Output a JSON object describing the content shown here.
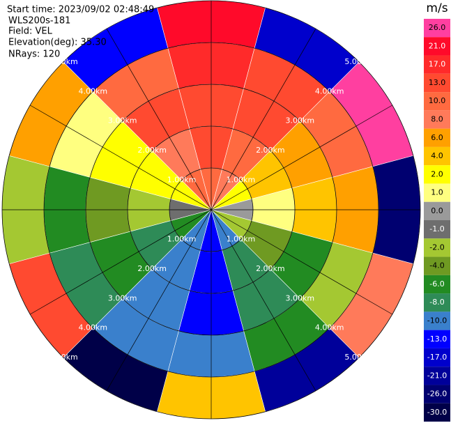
{
  "chart_data": {
    "type": "ppi",
    "header": [
      "Start time: 2023/09/02 02:48:49",
      "WLS200s-181",
      "Field: VEL",
      "Elevation(deg): 35.30",
      "NRays: 120"
    ],
    "unit": "m/s",
    "rings": [
      {
        "value": 1,
        "label": "1.00km"
      },
      {
        "value": 2,
        "label": "2.00km"
      },
      {
        "value": 3,
        "label": "3.00km"
      },
      {
        "value": 4,
        "label": "4.00km"
      },
      {
        "value": 5,
        "label": "5.00km"
      }
    ],
    "levels": [
      {
        "value": 26,
        "label": "26.0"
      },
      {
        "value": 21,
        "label": "21.0"
      },
      {
        "value": 17,
        "label": "17.0"
      },
      {
        "value": 13,
        "label": "13.0"
      },
      {
        "value": 10,
        "label": "10.0"
      },
      {
        "value": 8,
        "label": "8.0"
      },
      {
        "value": 6,
        "label": "6.0"
      },
      {
        "value": 4,
        "label": "4.0"
      },
      {
        "value": 2,
        "label": "2.0"
      },
      {
        "value": 1,
        "label": "1.0"
      },
      {
        "value": 0,
        "label": "0.0"
      },
      {
        "value": -1,
        "label": "-1.0"
      },
      {
        "value": -2,
        "label": "-2.0"
      },
      {
        "value": -4,
        "label": "-4.0"
      },
      {
        "value": -6,
        "label": "-6.0"
      },
      {
        "value": -8,
        "label": "-8.0"
      },
      {
        "value": -10,
        "label": "-10.0"
      },
      {
        "value": -13,
        "label": "-13.0"
      },
      {
        "value": -17,
        "label": "-17.0"
      },
      {
        "value": -21,
        "label": "-21.0"
      },
      {
        "value": -26,
        "label": "-26.0"
      },
      {
        "value": -30,
        "label": "-30.0"
      }
    ],
    "level_colors": [
      "#ff3fa0",
      "#ff0a2a",
      "#ff2a2a",
      "#ff4a30",
      "#ff6a40",
      "#ff7a5a",
      "#ffa000",
      "#ffc400",
      "#ffff00",
      "#ffff80",
      "#9a9a9a",
      "#6e6e6e",
      "#a4c832",
      "#6f9a22",
      "#228b22",
      "#2e8b57",
      "#3a80cc",
      "#0000ff",
      "#0000cc",
      "#00009a",
      "#000070",
      "#000048"
    ],
    "velocity": [
      [
        10,
        13,
        13,
        17,
        21
      ],
      [
        8,
        10,
        13,
        13,
        -17
      ],
      [
        2,
        4,
        6,
        10,
        26
      ],
      [
        0,
        1,
        4,
        6,
        -26
      ],
      [
        -2,
        -4,
        -6,
        -2,
        8
      ],
      [
        -10,
        -8,
        -8,
        -6,
        -21
      ],
      [
        -13,
        -13,
        -13,
        -10,
        4
      ],
      [
        -10,
        -10,
        -10,
        -10,
        -30
      ],
      [
        -6,
        -8,
        -6,
        -8,
        13
      ],
      [
        -1,
        -2,
        -4,
        -6,
        -2
      ],
      [
        2,
        2,
        2,
        1,
        6
      ],
      [
        10,
        8,
        13,
        10,
        -13
      ]
    ]
  }
}
